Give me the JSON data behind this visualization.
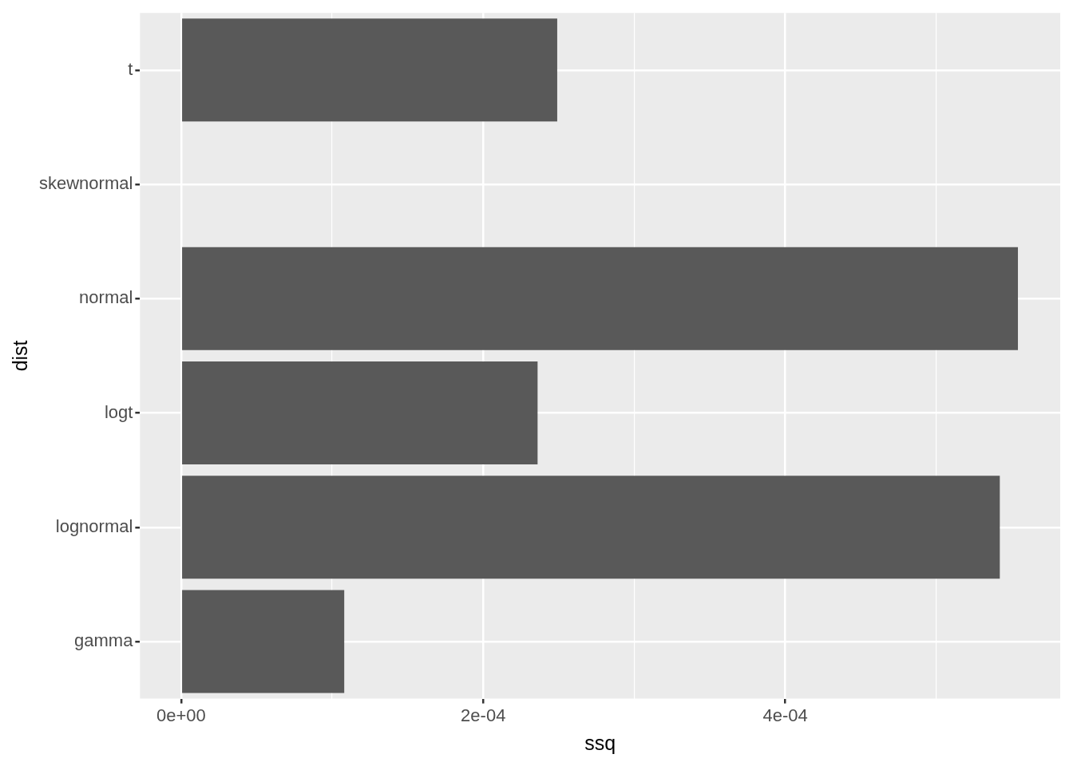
{
  "chart_data": {
    "type": "bar",
    "orientation": "horizontal",
    "xlabel": "ssq",
    "ylabel": "dist",
    "categories": [
      "t",
      "skewnormal",
      "normal",
      "logt",
      "lognormal",
      "gamma"
    ],
    "values": [
      0.000249,
      0,
      0.000554,
      0.000236,
      0.000542,
      0.000108
    ],
    "color": "#595959",
    "xlim": [
      -2.72e-05,
      0.000582
    ],
    "xticks": [
      {
        "value": 0,
        "label": "0e+00"
      },
      {
        "value": 0.0001,
        "label": null
      },
      {
        "value": 0.0002,
        "label": "2e-04"
      },
      {
        "value": 0.0003,
        "label": null
      },
      {
        "value": 0.0004,
        "label": "4e-04"
      },
      {
        "value": 0.0005,
        "label": null
      }
    ],
    "grid": true,
    "legend": false
  }
}
